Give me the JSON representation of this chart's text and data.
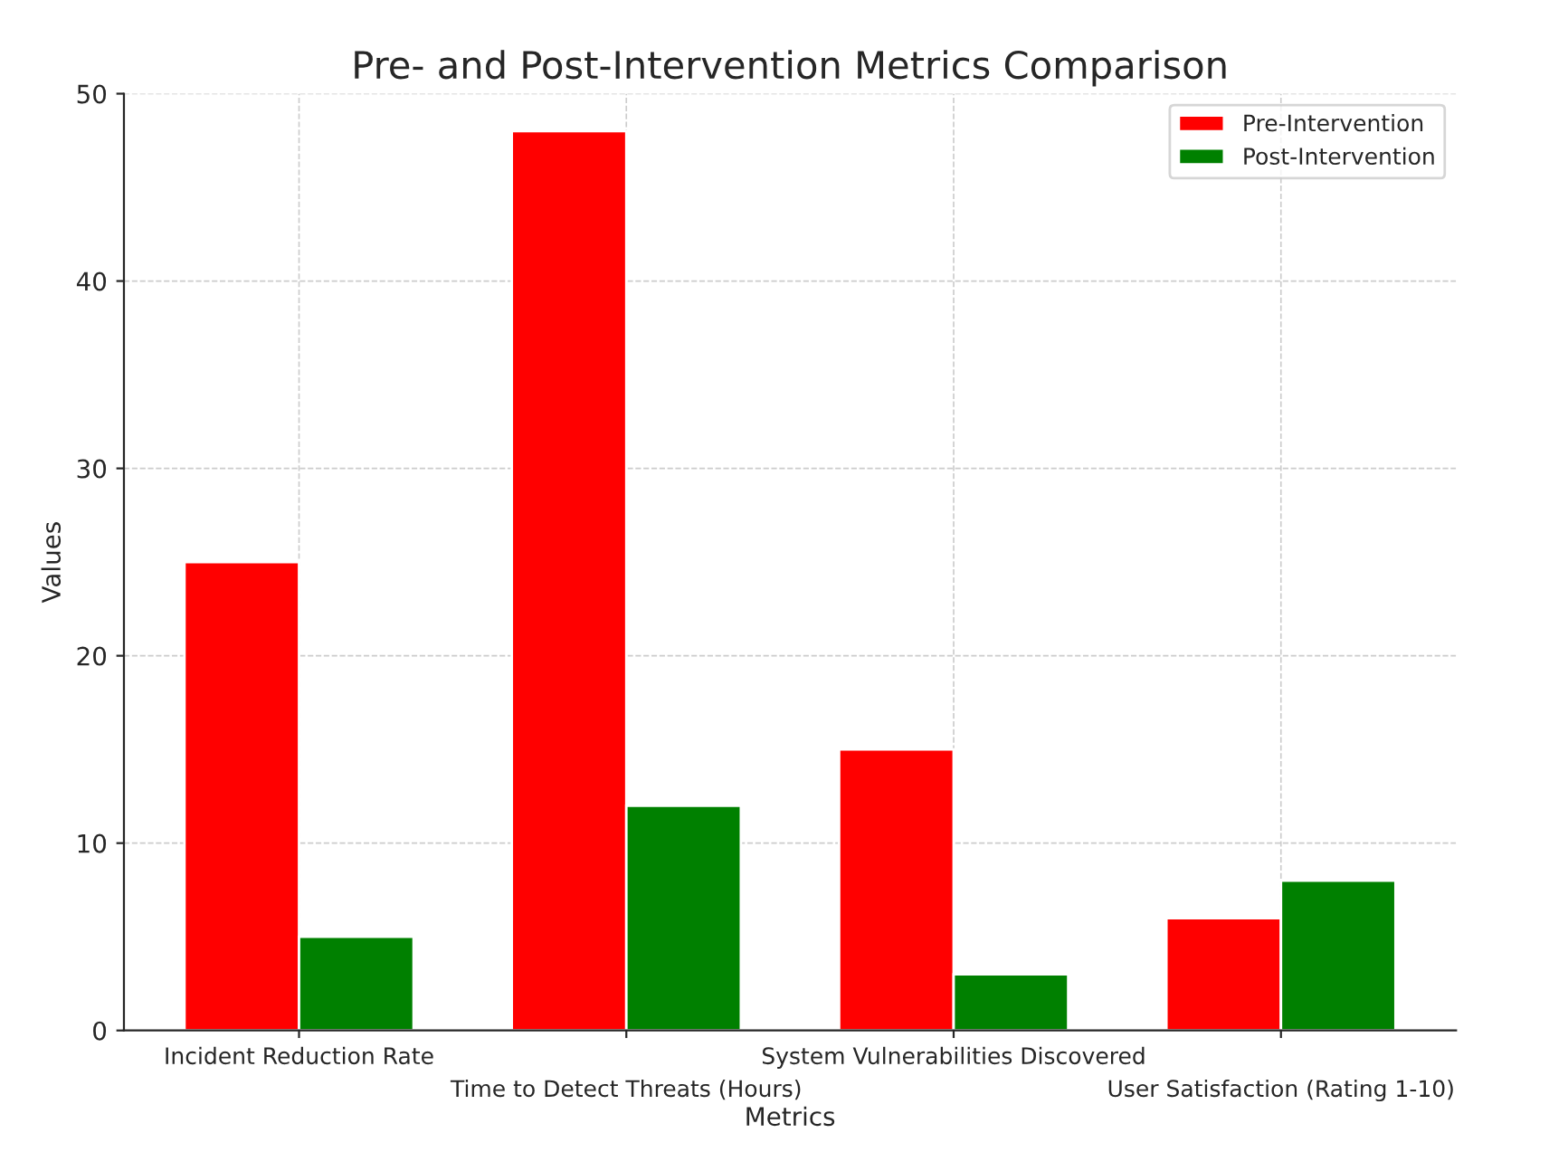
{
  "chart_data": {
    "type": "bar",
    "title": "Pre- and Post-Intervention Metrics Comparison",
    "xlabel": "Metrics",
    "ylabel": "Values",
    "categories": [
      "Incident Reduction Rate",
      "Time to Detect Threats (Hours)",
      "System Vulnerabilities Discovered",
      "User Satisfaction (Rating 1-10)"
    ],
    "series": [
      {
        "name": "Pre-Intervention",
        "color": "#ff0000",
        "values": [
          25,
          48,
          15,
          6
        ]
      },
      {
        "name": "Post-Intervention",
        "color": "#008000",
        "values": [
          5,
          12,
          3,
          8
        ]
      }
    ],
    "ylim": [
      0,
      50
    ],
    "yticks": [
      0,
      10,
      20,
      30,
      40,
      50
    ],
    "grid": true,
    "legend": "top right"
  }
}
